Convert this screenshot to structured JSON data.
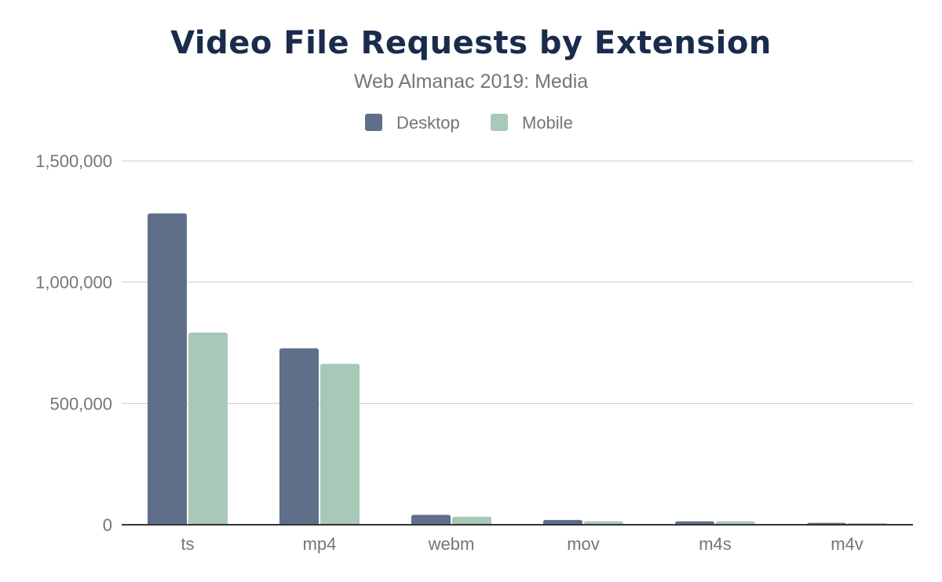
{
  "chart_data": {
    "type": "bar",
    "title": "Video File Requests by Extension",
    "subtitle": "Web Almanac 2019: Media",
    "xlabel": "",
    "ylabel": "",
    "categories": [
      "ts",
      "mp4",
      "webm",
      "mov",
      "m4s",
      "m4v"
    ],
    "series": [
      {
        "name": "Desktop",
        "color": "#5f6f89",
        "values": [
          1283000,
          727000,
          41000,
          20000,
          14000,
          7500
        ]
      },
      {
        "name": "Mobile",
        "color": "#a8c8b8",
        "values": [
          792000,
          663000,
          33000,
          14000,
          14000,
          7000
        ]
      }
    ],
    "ylim": [
      0,
      1500000
    ],
    "yticks": [
      0,
      500000,
      1000000,
      1500000
    ],
    "ytick_labels": [
      "0",
      "500,000",
      "1,000,000",
      "1,500,000"
    ],
    "grid": true,
    "legend_position": "top"
  }
}
